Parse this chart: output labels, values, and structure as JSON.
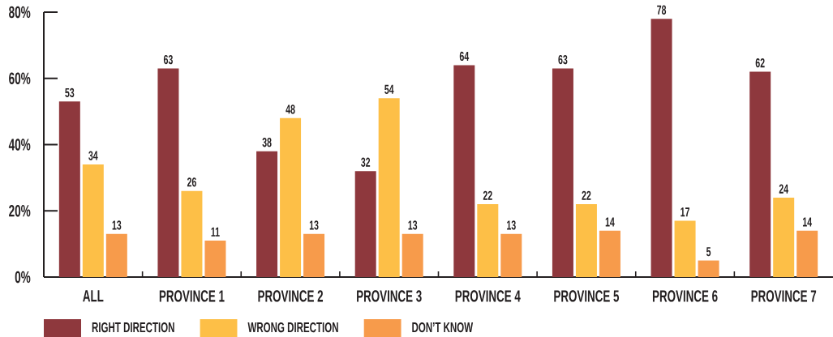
{
  "chart_data": {
    "type": "bar",
    "categories": [
      "ALL",
      "PROVINCE 1",
      "PROVINCE 2",
      "PROVINCE 3",
      "PROVINCE 4",
      "PROVINCE 5",
      "PROVINCE 6",
      "PROVINCE 7"
    ],
    "series": [
      {
        "name": "RIGHT DIRECTION",
        "color": "#8e383d",
        "values": [
          53,
          63,
          38,
          32,
          64,
          63,
          78,
          62
        ]
      },
      {
        "name": "WRONG DIRECTION",
        "color": "#fdbf47",
        "values": [
          34,
          26,
          48,
          54,
          22,
          22,
          17,
          24
        ]
      },
      {
        "name": "DON’T KNOW",
        "color": "#f79b4b",
        "values": [
          13,
          11,
          13,
          13,
          13,
          14,
          5,
          14
        ]
      }
    ],
    "ylim": [
      0,
      80
    ],
    "yticks": [
      {
        "value": 0,
        "label": "0%"
      },
      {
        "value": 20,
        "label": "20%"
      },
      {
        "value": 40,
        "label": "40%"
      },
      {
        "value": 60,
        "label": "60%"
      },
      {
        "value": 80,
        "label": "80%"
      }
    ],
    "data_labels": true,
    "legend": "bottom",
    "grid": false
  }
}
